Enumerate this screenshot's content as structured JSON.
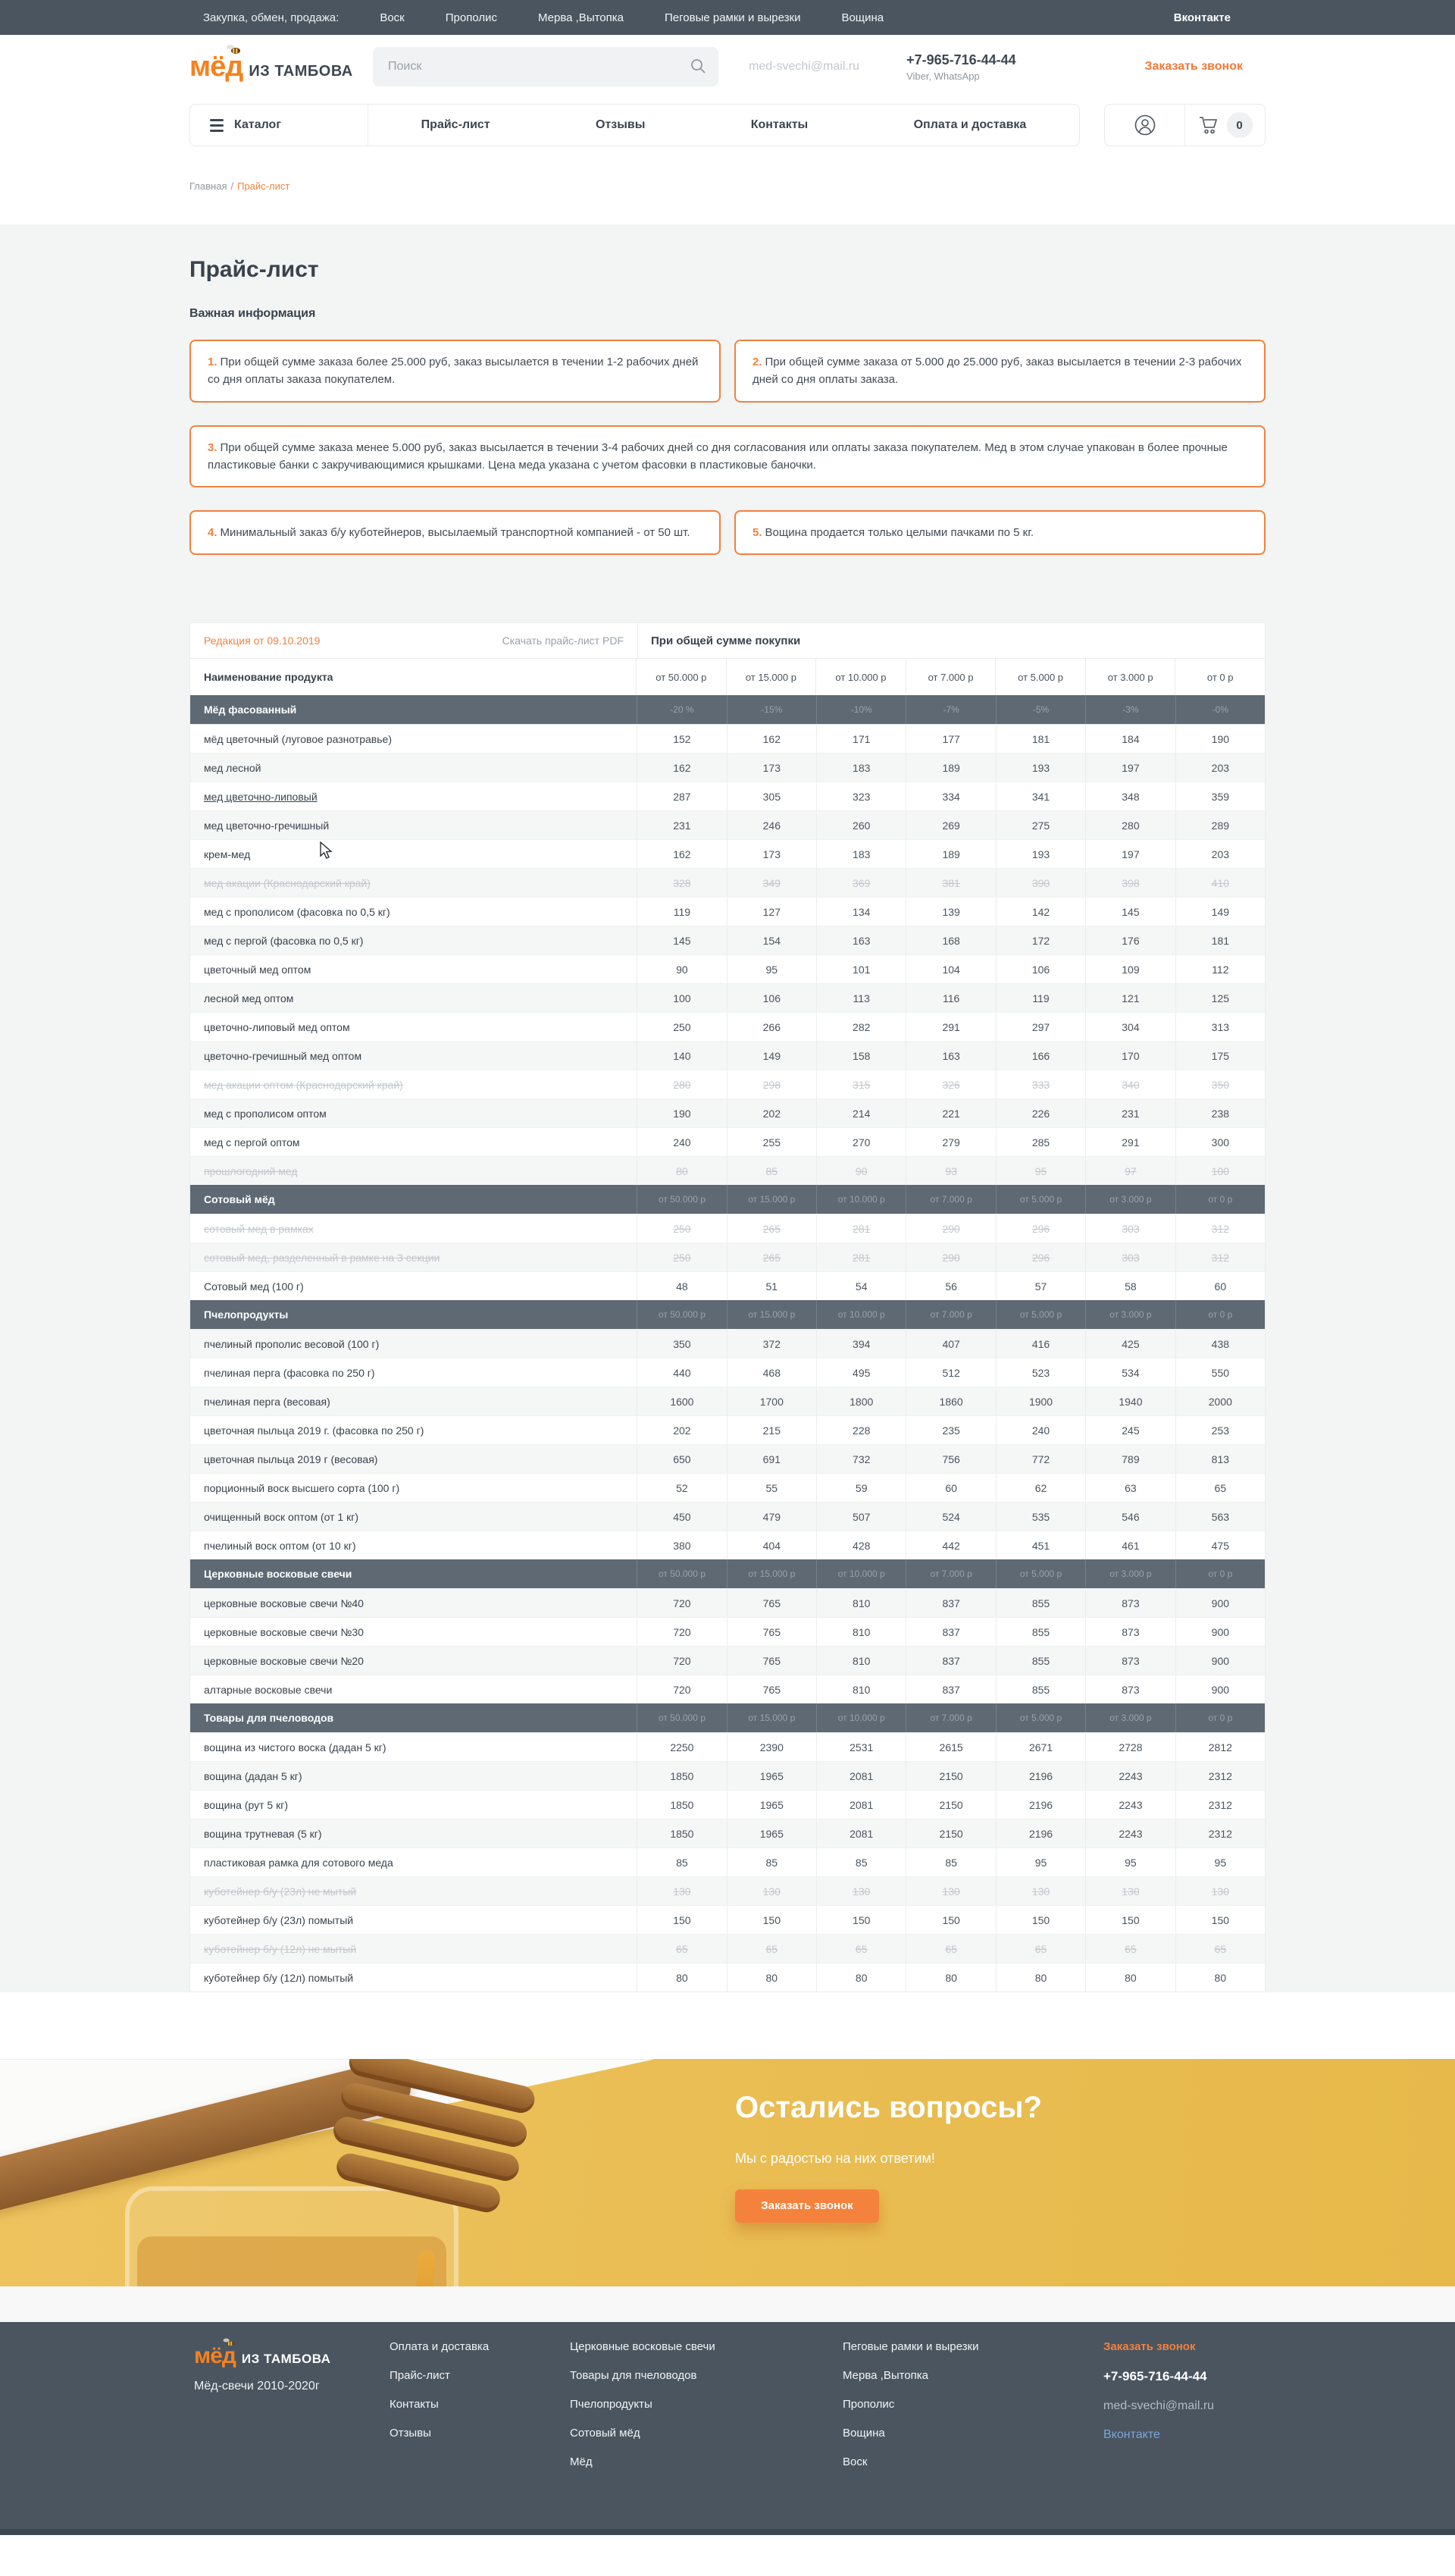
{
  "topbar": {
    "label": "Закупка, обмен, продажа:",
    "links": [
      "Воск",
      "Прополис",
      "Мерва ,Вытопка",
      "Пеговые рамки и вырезки",
      "Вощина"
    ],
    "vk": "Вконтакте"
  },
  "header": {
    "logo_main": "мёд",
    "logo_sub": "ИЗ ТАМБОВА",
    "search_placeholder": "Поиск",
    "email": "med-svechi@mail.ru",
    "phone": "+7-965-716-44-44",
    "phone_note": "Viber, WhatsApp",
    "call_button": "Заказать звонок"
  },
  "nav": {
    "catalog": "Каталог",
    "items": [
      "Прайс-лист",
      "Отзывы",
      "Контакты",
      "Оплата и доставка"
    ],
    "cart_count": "0"
  },
  "breadcrumb": {
    "home": "Главная",
    "sep": "/",
    "current": "Прайс-лист"
  },
  "page": {
    "title": "Прайс-лист",
    "info_title": "Важная информация",
    "info_boxes": [
      {
        "num": "1.",
        "text": "При общей сумме заказа более 25.000 руб, заказ высылается в течении 1-2 рабочих дней со дня оплаты заказа покупателем."
      },
      {
        "num": "2.",
        "text": "При общей сумме заказа от 5.000 до 25.000 руб, заказ высылается в течении 2-3 рабочих дней со дня оплаты заказа."
      },
      {
        "num": "3.",
        "text": "При общей сумме заказа менее 5.000 руб, заказ высылается в течении 3-4 рабочих дней со дня согласования или оплаты заказа покупателем. Мед в этом случае упакован в более прочные пластиковые банки с закручивающимися крышками. Цена меда указана с учетом фасовки в пластиковые баночки."
      },
      {
        "num": "4.",
        "text": "Минимальный заказ б/у куботейнеров, высылаемый транспортной компанией - от 50 шт."
      },
      {
        "num": "5.",
        "text": "Вощина продается только целыми пачками по 5 кг."
      }
    ]
  },
  "table": {
    "edition": "Редакция от 09.10.2019",
    "download": "Скачать прайс-лист PDF",
    "purchase_header": "При общей сумме покупки",
    "name_header": "Наименование продукта",
    "price_headers": [
      "от 50.000 р",
      "от 15.000 р",
      "от 10.000 р",
      "от 7.000 р",
      "от 5.000 р",
      "от 3.000 р",
      "от 0 р"
    ],
    "sections": [
      {
        "title": "Мёд фасованный",
        "header_cells": [
          "-20 %",
          "-15%",
          "-10%",
          "-7%",
          "-5%",
          "-3%",
          "-0%"
        ],
        "start_shaded": false,
        "rows": [
          {
            "name": "мёд цветочный (луговое разнотравье)",
            "values": [
              152,
              162,
              171,
              177,
              181,
              184,
              190
            ]
          },
          {
            "name": "мед лесной",
            "values": [
              162,
              173,
              183,
              189,
              193,
              197,
              203
            ]
          },
          {
            "name": "мед цветочно-липовый",
            "values": [
              287,
              305,
              323,
              334,
              341,
              348,
              359
            ],
            "hover": true
          },
          {
            "name": "мед цветочно-гречишный",
            "values": [
              231,
              246,
              260,
              269,
              275,
              280,
              289
            ]
          },
          {
            "name": "крем-мед",
            "values": [
              162,
              173,
              183,
              189,
              193,
              197,
              203
            ]
          },
          {
            "name": "мед акации (Краснодарский край)",
            "values": [
              328,
              349,
              369,
              381,
              390,
              398,
              410
            ],
            "strike": true
          },
          {
            "name": "мед с прополисом (фасовка по 0,5 кг)",
            "values": [
              119,
              127,
              134,
              139,
              142,
              145,
              149
            ]
          },
          {
            "name": "мед с пергой (фасовка по 0,5 кг)",
            "values": [
              145,
              154,
              163,
              168,
              172,
              176,
              181
            ]
          },
          {
            "name": "цветочный мед оптом",
            "values": [
              90,
              95,
              101,
              104,
              106,
              109,
              112
            ]
          },
          {
            "name": "лесной мед оптом",
            "values": [
              100,
              106,
              113,
              116,
              119,
              121,
              125
            ]
          },
          {
            "name": "цветочно-липовый мед оптом",
            "values": [
              250,
              266,
              282,
              291,
              297,
              304,
              313
            ]
          },
          {
            "name": "цветочно-гречишный мед оптом",
            "values": [
              140,
              149,
              158,
              163,
              166,
              170,
              175
            ]
          },
          {
            "name": "мед акации оптом (Краснодарский край)",
            "values": [
              280,
              298,
              315,
              326,
              333,
              340,
              350
            ],
            "strike": true
          },
          {
            "name": "мед с прополисом оптом",
            "values": [
              190,
              202,
              214,
              221,
              226,
              231,
              238
            ]
          },
          {
            "name": "мед с пергой оптом",
            "values": [
              240,
              255,
              270,
              279,
              285,
              291,
              300
            ]
          },
          {
            "name": "прошлогодний мед",
            "values": [
              80,
              85,
              90,
              93,
              95,
              97,
              100
            ],
            "strike": true
          }
        ]
      },
      {
        "title": "Сотовый мёд",
        "header_cells": [
          "от 50.000 р",
          "от 15.000 р",
          "от 10.000 р",
          "от 7.000 р",
          "от 5.000 р",
          "от 3.000 р",
          "от 0 р"
        ],
        "start_shaded": false,
        "rows": [
          {
            "name": "сотовый мед в рамках",
            "values": [
              250,
              265,
              281,
              290,
              296,
              303,
              312
            ],
            "strike": true
          },
          {
            "name": "сотовый мед, разделенный в рамке на 3 секции",
            "values": [
              250,
              265,
              281,
              290,
              296,
              303,
              312
            ],
            "strike": true
          },
          {
            "name": "Сотовый мед (100 г)",
            "values": [
              48,
              51,
              54,
              56,
              57,
              58,
              60
            ]
          }
        ]
      },
      {
        "title": "Пчелопродукты",
        "header_cells": [
          "от 50.000 р",
          "от 15.000 р",
          "от 10.000 р",
          "от 7.000 р",
          "от 5.000 р",
          "от 3.000 р",
          "от 0 р"
        ],
        "start_shaded": true,
        "rows": [
          {
            "name": "пчелиный прополис весовой (100 г)",
            "values": [
              350,
              372,
              394,
              407,
              416,
              425,
              438
            ]
          },
          {
            "name": "пчелиная перга (фасовка по 250 г)",
            "values": [
              440,
              468,
              495,
              512,
              523,
              534,
              550
            ]
          },
          {
            "name": "пчелиная перга (весовая)",
            "values": [
              1600,
              1700,
              1800,
              1860,
              1900,
              1940,
              2000
            ]
          },
          {
            "name": "цветочная пыльца 2019 г. (фасовка по 250 г)",
            "values": [
              202,
              215,
              228,
              235,
              240,
              245,
              253
            ]
          },
          {
            "name": "цветочная пыльца 2019 г (весовая)",
            "values": [
              650,
              691,
              732,
              756,
              772,
              789,
              813
            ]
          },
          {
            "name": "порционный воск высшего сорта (100 г)",
            "values": [
              52,
              55,
              59,
              60,
              62,
              63,
              65
            ]
          },
          {
            "name": "очищенный воск оптом (от 1 кг)",
            "values": [
              450,
              479,
              507,
              524,
              535,
              546,
              563
            ]
          },
          {
            "name": "пчелиный воск оптом (от 10 кг)",
            "values": [
              380,
              404,
              428,
              442,
              451,
              461,
              475
            ]
          }
        ]
      },
      {
        "title": "Церковные восковые свечи",
        "header_cells": [
          "от 50.000 р",
          "от 15.000 р",
          "от 10.000 р",
          "от 7.000 р",
          "от 5.000 р",
          "от 3.000 р",
          "от 0 р"
        ],
        "start_shaded": true,
        "rows": [
          {
            "name": "церковные восковые свечи №40",
            "values": [
              720,
              765,
              810,
              837,
              855,
              873,
              900
            ]
          },
          {
            "name": "церковные восковые свечи №30",
            "values": [
              720,
              765,
              810,
              837,
              855,
              873,
              900
            ]
          },
          {
            "name": "церковные восковые свечи №20",
            "values": [
              720,
              765,
              810,
              837,
              855,
              873,
              900
            ]
          },
          {
            "name": "алтарные восковые свечи",
            "values": [
              720,
              765,
              810,
              837,
              855,
              873,
              900
            ]
          }
        ]
      },
      {
        "title": "Товары для пчеловодов",
        "header_cells": [
          "от 50.000 р",
          "от 15.000 р",
          "от 10.000 р",
          "от 7.000 р",
          "от 5.000 р",
          "от 3.000 р",
          "от 0 р"
        ],
        "start_shaded": false,
        "rows": [
          {
            "name": "вощина из чистого воска (дадан 5 кг)",
            "values": [
              2250,
              2390,
              2531,
              2615,
              2671,
              2728,
              2812
            ]
          },
          {
            "name": "вощина (дадан 5 кг)",
            "values": [
              1850,
              1965,
              2081,
              2150,
              2196,
              2243,
              2312
            ]
          },
          {
            "name": "вощина (рут 5 кг)",
            "values": [
              1850,
              1965,
              2081,
              2150,
              2196,
              2243,
              2312
            ]
          },
          {
            "name": "вощина трутневая (5 кг)",
            "values": [
              1850,
              1965,
              2081,
              2150,
              2196,
              2243,
              2312
            ]
          },
          {
            "name": "пластиковая рамка для сотового меда",
            "values": [
              85,
              85,
              85,
              85,
              95,
              95,
              95
            ]
          },
          {
            "name": "куботейнер б/у (23л) не мытый",
            "values": [
              130,
              130,
              130,
              130,
              130,
              130,
              130
            ],
            "strike": true
          },
          {
            "name": "куботейнер б/у (23л) помытый",
            "values": [
              150,
              150,
              150,
              150,
              150,
              150,
              150
            ]
          },
          {
            "name": "куботейнер б/у (12л) не мытый",
            "values": [
              65,
              65,
              65,
              65,
              65,
              65,
              65
            ],
            "strike": true
          },
          {
            "name": "куботейнер б/у (12л) помытый",
            "values": [
              80,
              80,
              80,
              80,
              80,
              80,
              80
            ]
          }
        ]
      }
    ]
  },
  "banner": {
    "title": "Остались вопросы?",
    "subtitle": "Мы с радостью на них ответим!",
    "button": "Заказать звонок"
  },
  "footer": {
    "logo_main": "мёд",
    "logo_sub": "ИЗ ТАМБОВА",
    "tagline": "Мёд-свечи 2010-2020г",
    "columns": [
      [
        "Оплата и доставка",
        "Прайс-лист",
        "Контакты",
        "Отзывы"
      ],
      [
        "Церковные восковые свечи",
        "Товары для пчеловодов",
        "Пчелопродукты",
        "Сотовый мёд",
        "Мёд"
      ],
      [
        "Пеговые рамки и вырезки",
        "Мерва ,Вытопка",
        "Прополис",
        "Вощина",
        "Воск"
      ]
    ],
    "call": "Заказать звонок",
    "phone": "+7-965-716-44-44",
    "email": "med-svechi@mail.ru",
    "vk": "Вконтакте"
  },
  "colors": {
    "accent_orange": "#f0823c",
    "slate_dark": "#4a5560",
    "table_group_header": "#5e6973",
    "banner_yellow": "#e9bd52",
    "link_blue": "#7aa5da"
  }
}
